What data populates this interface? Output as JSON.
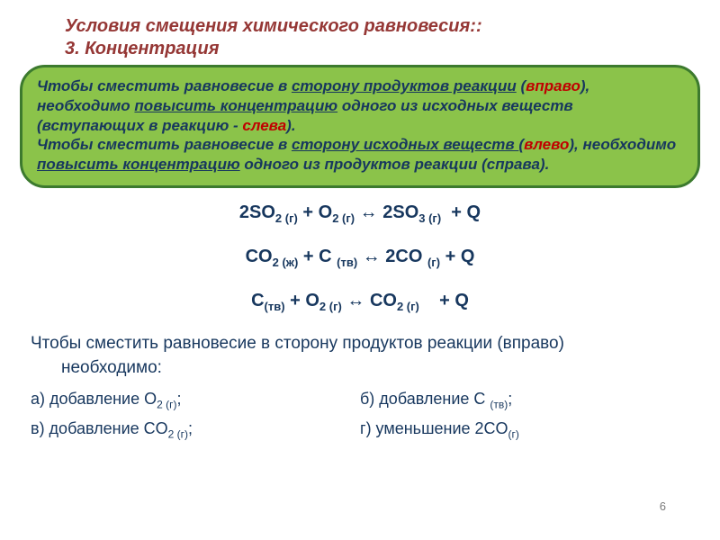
{
  "title_line1": "Условия смещения химического равновесия:",
  "title_line2": "3. Концентрация",
  "box": {
    "p1a": "Чтобы сместить равновесие в ",
    "p1b": "сторону продуктов реакции",
    "p1c": " (",
    "p1d": "вправо",
    "p1e": "), необходимо ",
    "p1f": "повысить концентрацию",
    "p1g": " одного из ",
    "p1h": "исходных веществ",
    "p1i": " (вступающих в реакцию - ",
    "p1j": "слева",
    "p1k": ").",
    "p2a": "Чтобы сместить равновесие в ",
    "p2b": "сторону исходных веществ ",
    "p2c": " (",
    "p2d": "влево",
    "p2e": "), необходимо ",
    "p2f": "повысить концентрацию",
    "p2g": " одного из ",
    "p2h": "продуктов реакции",
    "p2i": " (справа)."
  },
  "eq1": "2SO₂ (г) + O₂ (г) ↔ 2SO₃ (г)  + Q",
  "eq2": "CO₂ (ж) + C (тв) ↔ 2CO (г) + Q",
  "eq3": "C(тв) + O₂ (г) ↔ CO₂ (г)    + Q",
  "bottom_line1": "Чтобы сместить равновесие в сторону продуктов реакции (вправо)",
  "bottom_line2": "необходимо:",
  "opts": {
    "a_pre": "а) добавление O",
    "a_sub": "2 (г)",
    "a_post": ";",
    "b_pre": "б) добавление C ",
    "b_sub": "(тв)",
    "b_post": ";",
    "c_pre": "в) добавление CO",
    "c_sub": "2 (г)",
    "c_post": ";",
    "d_pre": "г) уменьшение 2CO",
    "d_sub": "(г)",
    "d_post": ""
  },
  "pagenum": "6",
  "colors": {
    "title": "#953735",
    "boxbg": "#8bc34a",
    "boxborder": "#3c7a2e",
    "text": "#17375e",
    "red": "#c00000"
  }
}
